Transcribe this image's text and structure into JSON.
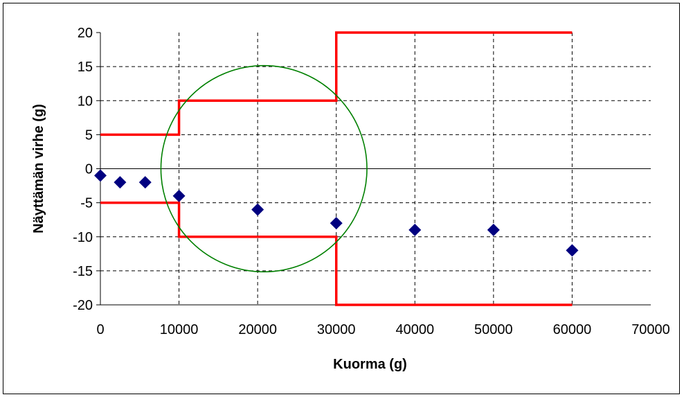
{
  "chart_data": {
    "type": "scatter",
    "xlabel": "Kuorma (g)",
    "ylabel": "Näyttämän virhe (g)",
    "xlim": [
      0,
      70000
    ],
    "ylim": [
      -20,
      20
    ],
    "x_ticks": [
      0,
      10000,
      20000,
      30000,
      40000,
      50000,
      60000,
      70000
    ],
    "y_ticks": [
      20,
      15,
      10,
      5,
      0,
      -5,
      -10,
      -15,
      -20
    ],
    "grid": true,
    "series": [
      {
        "kind": "scatter",
        "marker": "diamond",
        "color": "#000080",
        "points": [
          {
            "x": 0,
            "y": -1
          },
          {
            "x": 2500,
            "y": -2
          },
          {
            "x": 5700,
            "y": -2
          },
          {
            "x": 10000,
            "y": -4
          },
          {
            "x": 20000,
            "y": -6
          },
          {
            "x": 30000,
            "y": -8
          },
          {
            "x": 40000,
            "y": -9
          },
          {
            "x": 50000,
            "y": -9
          },
          {
            "x": 60000,
            "y": -12
          }
        ]
      },
      {
        "kind": "step-line",
        "color": "#ff0000",
        "points": [
          {
            "x": 0,
            "y": 5
          },
          {
            "x": 10000,
            "y": 5
          },
          {
            "x": 10000,
            "y": 10
          },
          {
            "x": 30000,
            "y": 10
          },
          {
            "x": 30000,
            "y": 20
          },
          {
            "x": 60000,
            "y": 20
          }
        ]
      },
      {
        "kind": "step-line",
        "color": "#ff0000",
        "points": [
          {
            "x": 0,
            "y": -5
          },
          {
            "x": 10000,
            "y": -5
          },
          {
            "x": 10000,
            "y": -10
          },
          {
            "x": 30000,
            "y": -10
          },
          {
            "x": 30000,
            "y": -20
          },
          {
            "x": 60000,
            "y": -20
          }
        ]
      }
    ],
    "annotation": {
      "shape": "circle",
      "color": "#008000",
      "center": {
        "x": 20800,
        "y": 0
      },
      "radius_x_units": 13100
    }
  }
}
